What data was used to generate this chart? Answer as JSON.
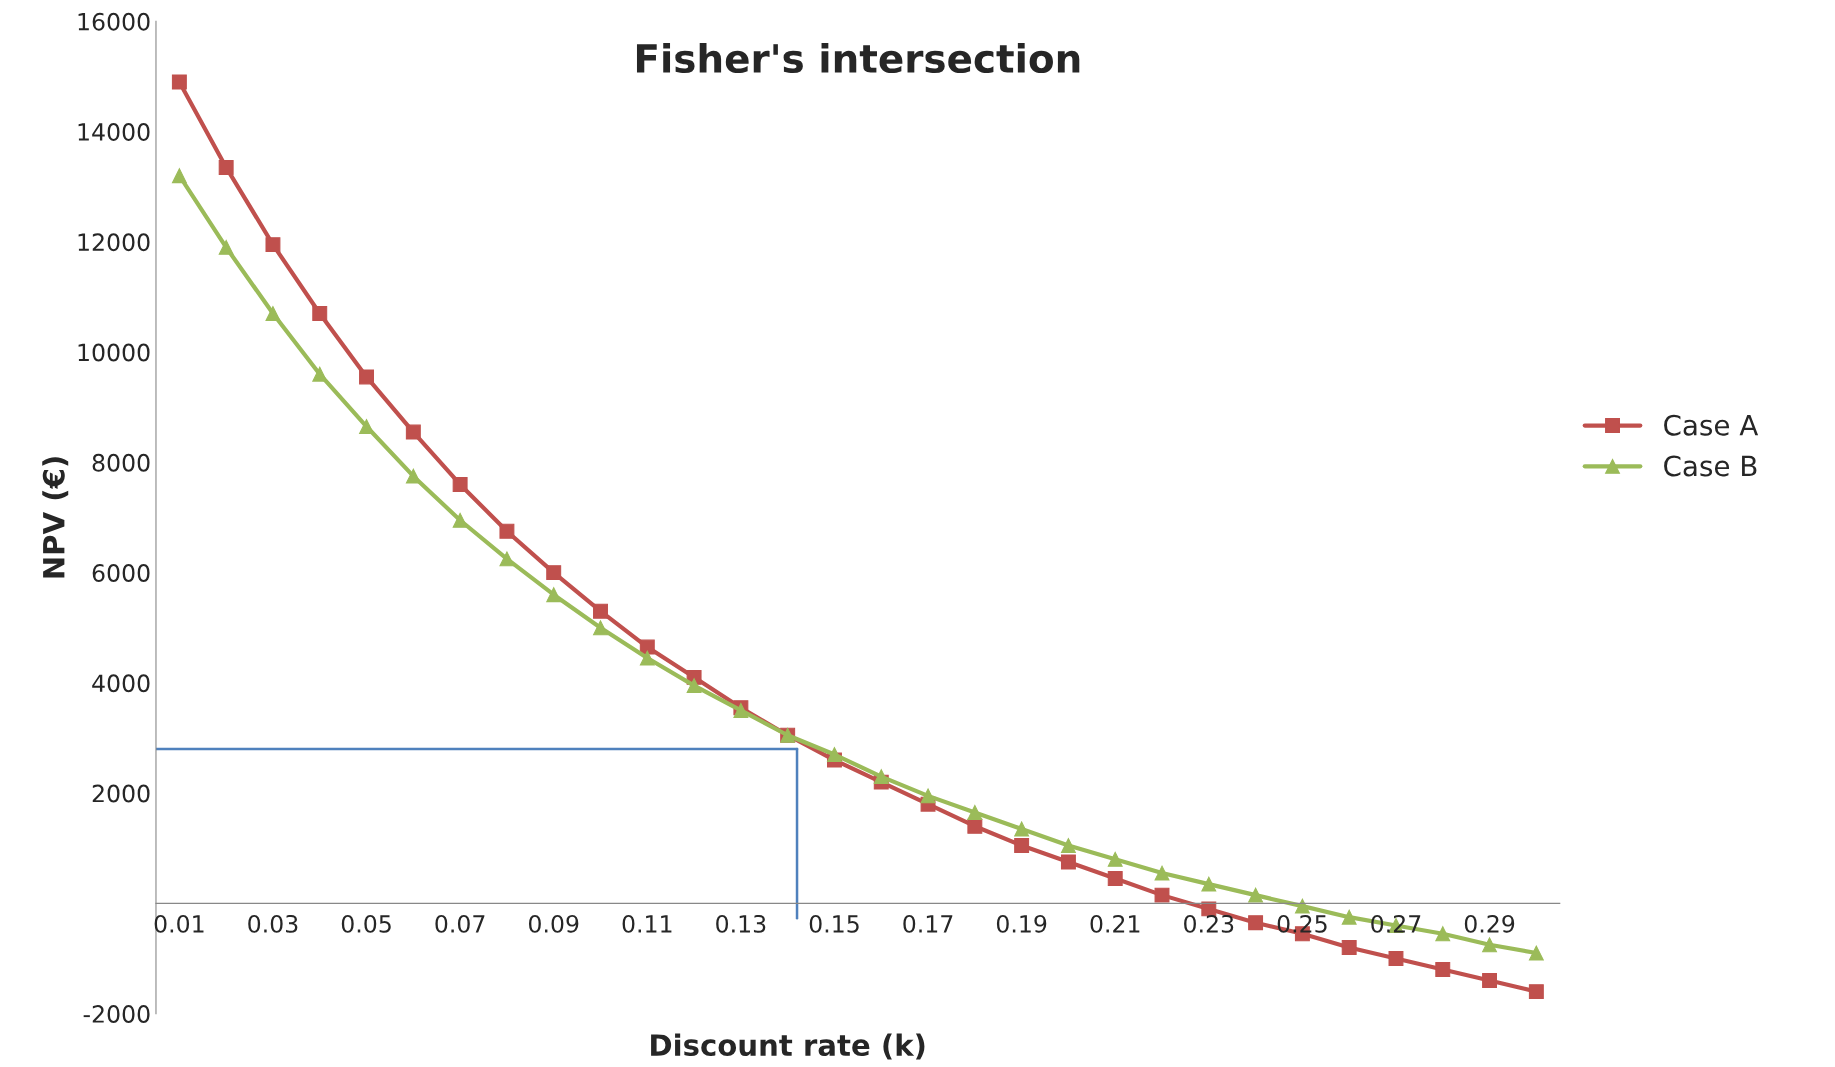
{
  "chart_data": {
    "type": "line",
    "title": "Fisher's intersection",
    "xlabel": "Discount rate (k)",
    "ylabel": "NPV (€)",
    "x": [
      0.01,
      0.02,
      0.03,
      0.04,
      0.05,
      0.06,
      0.07,
      0.08,
      0.09,
      0.1,
      0.11,
      0.12,
      0.13,
      0.14,
      0.15,
      0.16,
      0.17,
      0.18,
      0.19,
      0.2,
      0.21,
      0.22,
      0.23,
      0.24,
      0.25,
      0.26,
      0.27,
      0.28,
      0.29,
      0.3
    ],
    "series": [
      {
        "name": "Case A",
        "color": "#c0504d",
        "marker": "square",
        "values": [
          14900,
          13350,
          11950,
          10700,
          9550,
          8550,
          7600,
          6750,
          6000,
          5300,
          4650,
          4100,
          3550,
          3050,
          2600,
          2200,
          1800,
          1400,
          1050,
          750,
          450,
          150,
          -100,
          -350,
          -550,
          -800,
          -1000,
          -1200,
          -1400,
          -1600
        ]
      },
      {
        "name": "Case B",
        "color": "#9bbb59",
        "marker": "triangle",
        "values": [
          13200,
          11900,
          10700,
          9600,
          8650,
          7750,
          6950,
          6250,
          5600,
          5000,
          4450,
          3950,
          3500,
          3050,
          2700,
          2300,
          1950,
          1650,
          1350,
          1050,
          800,
          550,
          350,
          150,
          -50,
          -250,
          -400,
          -550,
          -750,
          -900
        ]
      }
    ],
    "xlim": [
      0.005,
      0.305
    ],
    "xticks": [
      0.01,
      0.03,
      0.05,
      0.07,
      0.09,
      0.11,
      0.13,
      0.15,
      0.17,
      0.19,
      0.21,
      0.23,
      0.25,
      0.27,
      0.29
    ],
    "ylim": [
      -2000,
      16000
    ],
    "yticks": [
      -2000,
      2000,
      4000,
      6000,
      8000,
      10000,
      12000,
      14000,
      16000
    ],
    "ref_lines": [
      {
        "axis": "y",
        "value": 2800,
        "color": "#4f81bd"
      },
      {
        "axis": "x",
        "value": 0.142,
        "color": "#4f81bd"
      }
    ],
    "legend": "right",
    "grid": false
  }
}
